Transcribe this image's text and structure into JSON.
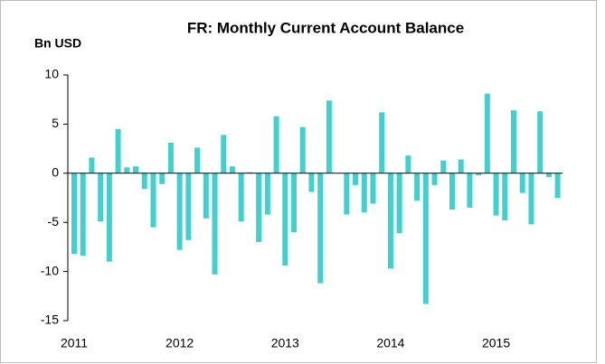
{
  "chart_data": {
    "type": "bar",
    "title": "FR: Monthly Current Account Balance",
    "y_label": "Bn USD",
    "categories": [
      "2011",
      null,
      null,
      null,
      null,
      null,
      null,
      null,
      null,
      null,
      null,
      null,
      "2012",
      null,
      null,
      null,
      null,
      null,
      null,
      null,
      null,
      null,
      null,
      null,
      "2013",
      null,
      null,
      null,
      null,
      null,
      null,
      null,
      null,
      null,
      null,
      null,
      "2014",
      null,
      null,
      null,
      null,
      null,
      null,
      null,
      null,
      null,
      null,
      null,
      "2015",
      null,
      null,
      null,
      null,
      null,
      null,
      null
    ],
    "values": [
      -8.2,
      -8.4,
      1.6,
      -4.9,
      -9.0,
      4.5,
      0.6,
      0.7,
      -1.6,
      -5.5,
      -1.1,
      3.1,
      -7.8,
      -6.8,
      2.6,
      -4.6,
      -10.3,
      3.9,
      0.7,
      -4.9,
      0.1,
      -7.0,
      -4.2,
      5.8,
      -9.4,
      -6.0,
      4.7,
      -1.9,
      -11.2,
      7.4,
      0,
      -4.2,
      -1.2,
      -4.0,
      -3.1,
      6.2,
      -9.7,
      -6.1,
      1.8,
      -2.8,
      -13.3,
      -1.2,
      1.3,
      -3.7,
      1.4,
      -3.5,
      -0.2,
      8.1,
      -4.3,
      -4.8,
      6.4,
      -2.0,
      -5.2,
      6.3,
      -0.4,
      -2.5
    ],
    "color": "#40d0d0",
    "ylim": [
      -15,
      10
    ],
    "yticks": [
      -15,
      -10,
      -5,
      0,
      5,
      10
    ]
  }
}
